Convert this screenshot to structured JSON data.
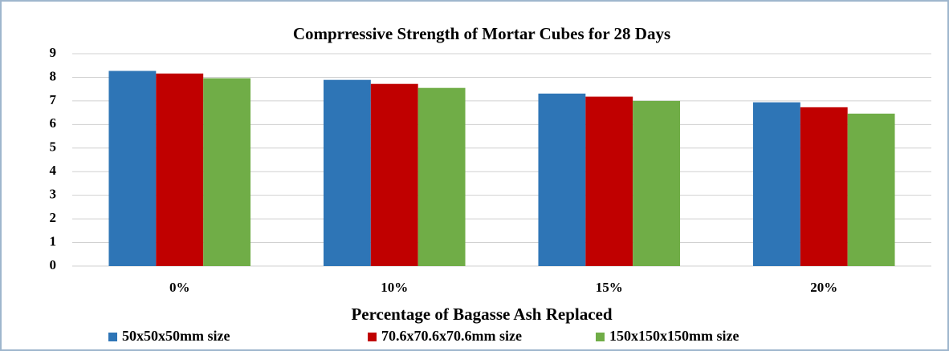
{
  "chart_data": {
    "type": "bar",
    "title": "Comprressive Strength of Mortar Cubes for 28 Days",
    "x_label": "Percentage of Bagasse Ash Replaced",
    "categories": [
      "0%",
      "10%",
      "15%",
      "20%"
    ],
    "series": [
      {
        "name": "50x50x50mm size",
        "color": "#2e75b6",
        "values": [
          8.27,
          7.89,
          7.31,
          6.94
        ]
      },
      {
        "name": "70.6x70.6x70.6mm size",
        "color": "#c00000",
        "values": [
          8.16,
          7.72,
          7.18,
          6.73
        ]
      },
      {
        "name": "150x150x150mm size",
        "color": "#70ad47",
        "values": [
          7.96,
          7.55,
          7.0,
          6.46
        ]
      }
    ],
    "ylim": [
      0,
      9
    ],
    "yticks": [
      0,
      1,
      2,
      3,
      4,
      5,
      6,
      7,
      8,
      9
    ],
    "grid": true,
    "legend": "bottom"
  }
}
